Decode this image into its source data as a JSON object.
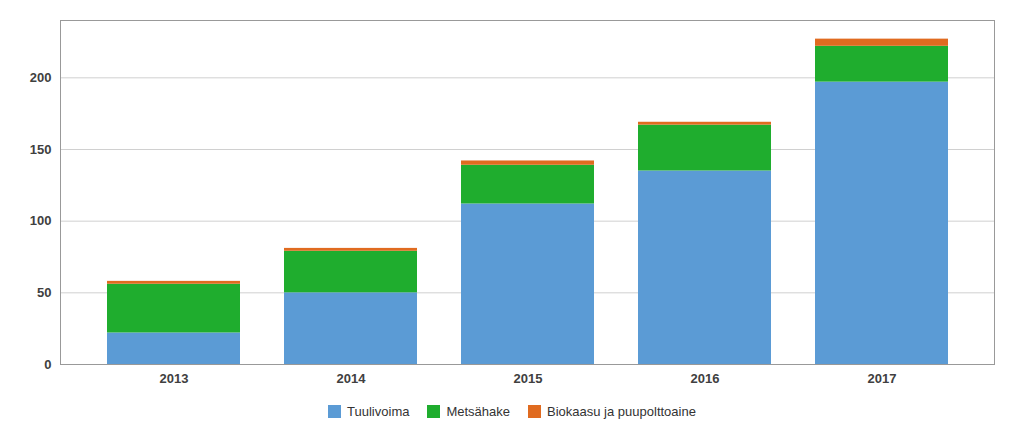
{
  "chart_data": {
    "type": "bar",
    "stacked": true,
    "categories": [
      "2013",
      "2014",
      "2015",
      "2016",
      "2017"
    ],
    "series": [
      {
        "name": "Tuulivoima",
        "color": "#5b9bd5",
        "values": [
          22,
          50,
          112,
          135,
          197
        ]
      },
      {
        "name": "Metsähake",
        "color": "#1fad2e",
        "values": [
          34,
          29,
          27,
          32,
          25
        ]
      },
      {
        "name": "Biokaasu ja puupolttoaine",
        "color": "#e06b20",
        "values": [
          2,
          2,
          3,
          2,
          5
        ]
      }
    ],
    "ylim": [
      0,
      240
    ],
    "yticks": [
      0,
      50,
      100,
      150,
      200
    ],
    "grid": true,
    "legend": "bottom"
  }
}
